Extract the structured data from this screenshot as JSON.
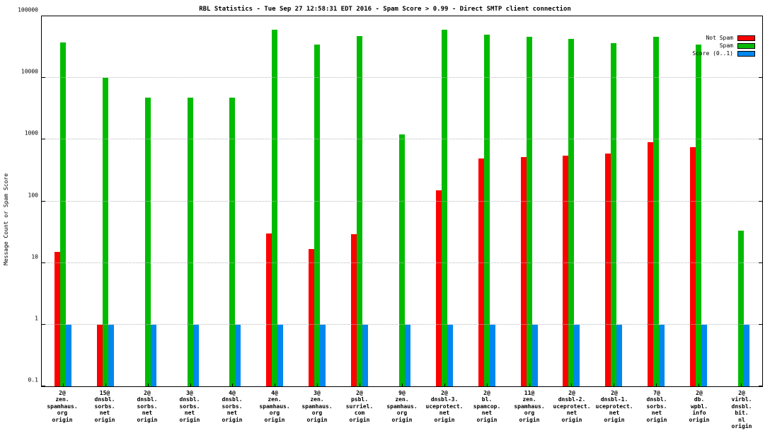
{
  "chart_data": {
    "type": "bar",
    "title": "RBL Statistics - Tue Sep 27 12:58:31 EDT 2016 - Spam Score > 0.99 - Direct SMTP client connection",
    "ylabel": "Message Count or Spam Score",
    "scale": "log-y",
    "ylim": [
      0.1,
      100000
    ],
    "yticks": [
      0.1,
      1,
      10,
      100,
      1000,
      10000,
      100000
    ],
    "ytick_labels": [
      "0.1",
      "1",
      "10",
      "100",
      "1000",
      "10000",
      "100000"
    ],
    "grid": true,
    "legend_position": "top-right",
    "categories": [
      "2@\nzen.\nspamhaus.\norg\norigin",
      "15@\ndnsbl.\nsorbs.\nnet\norigin",
      "2@\ndnsbl.\nsorbs.\nnet\norigin",
      "3@\ndnsbl.\nsorbs.\nnet\norigin",
      "4@\ndnsbl.\nsorbs.\nnet\norigin",
      "4@\nzen.\nspamhaus.\norg\norigin",
      "3@\nzen.\nspamhaus.\norg\norigin",
      "2@\npsbl.\nsurriel.\ncom\norigin",
      "9@\nzen.\nspamhaus.\norg\norigin",
      "2@\ndnsbl-3.\nuceprotect.\nnet\norigin",
      "2@\nbl.\nspamcop.\nnet\norigin",
      "11@\nzen.\nspamhaus.\norg\norigin",
      "2@\ndnsbl-2.\nuceprotect.\nnet\norigin",
      "2@\ndnsbl-1.\nuceprotect.\nnet\norigin",
      "7@\ndnsbl.\nsorbs.\nnet\norigin",
      "2@\ndb.\nwpbl.\ninfo\norigin",
      "2@\nvirbl.\ndnsbl.\nbit.\nnl\norigin"
    ],
    "series": [
      {
        "name": "Not Spam",
        "color": "#ff0000",
        "values": [
          15,
          1,
          null,
          null,
          null,
          30,
          17,
          29,
          null,
          150,
          500,
          520,
          550,
          600,
          900,
          750,
          null
        ]
      },
      {
        "name": "Spam",
        "color": "#00bb00",
        "values": [
          38000,
          10000,
          4800,
          4800,
          4800,
          60000,
          35000,
          48000,
          1200,
          60000,
          50000,
          46000,
          43000,
          37000,
          47000,
          35000,
          33
        ]
      },
      {
        "name": "Score (0..1)",
        "color": "#0088ee",
        "values": [
          1,
          1,
          1,
          1,
          1,
          1,
          1,
          1,
          1,
          1,
          1,
          1,
          1,
          1,
          1,
          1,
          1
        ]
      }
    ]
  }
}
